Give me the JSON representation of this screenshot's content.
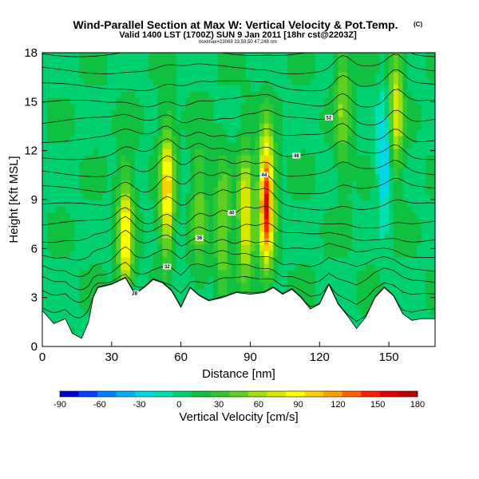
{
  "chart_data": {
    "type": "heatmap",
    "title": "Wind-Parallel Section at Max W: Vertical Velocity & Pot.Temp.",
    "copyright_mark": "(C)",
    "subtitle": "Valid 1400 LST (1700Z) SUN 9 Jan 2011 [18hr cst@2203Z]",
    "subsubtitle": "boxlmax=23069 33.59,50 47,248 nm",
    "xlabel": "Distance [nm]",
    "ylabel": "Height [Kft MSL]",
    "xlim": [
      0,
      170
    ],
    "ylim": [
      0,
      18
    ],
    "xticks": [
      0,
      30,
      60,
      90,
      120,
      150
    ],
    "yticks": [
      0,
      3,
      6,
      9,
      12,
      15,
      18
    ],
    "colorbar": {
      "label": "Vertical Velocity [cm/s]",
      "ticks": [
        -90,
        -60,
        -30,
        0,
        30,
        60,
        90,
        120,
        150,
        180
      ],
      "min": -90,
      "max": 180,
      "colors": [
        "#0000cc",
        "#0040ff",
        "#0080ff",
        "#00b0ff",
        "#00d8e8",
        "#00e0b0",
        "#00d070",
        "#10c040",
        "#30c830",
        "#60d020",
        "#a0e010",
        "#d8e800",
        "#ffff00",
        "#ffd000",
        "#ffa000",
        "#ff6000",
        "#ff2000",
        "#e00000",
        "#c00000"
      ]
    },
    "terrain": [
      [
        0,
        2.2
      ],
      [
        5,
        1.4
      ],
      [
        10,
        1.7
      ],
      [
        13,
        0.8
      ],
      [
        17,
        0.5
      ],
      [
        20,
        1.5
      ],
      [
        22,
        3.0
      ],
      [
        24,
        3.6
      ],
      [
        30,
        3.8
      ],
      [
        36,
        4.2
      ],
      [
        40,
        3.2
      ],
      [
        44,
        3.6
      ],
      [
        48,
        4.1
      ],
      [
        52,
        3.9
      ],
      [
        56,
        3.4
      ],
      [
        60,
        2.4
      ],
      [
        64,
        3.6
      ],
      [
        68,
        3.1
      ],
      [
        72,
        2.8
      ],
      [
        78,
        3.0
      ],
      [
        84,
        3.3
      ],
      [
        90,
        3.2
      ],
      [
        96,
        3.3
      ],
      [
        100,
        3.6
      ],
      [
        104,
        3.2
      ],
      [
        108,
        3.5
      ],
      [
        112,
        3.0
      ],
      [
        116,
        2.3
      ],
      [
        120,
        2.6
      ],
      [
        124,
        3.8
      ],
      [
        128,
        2.6
      ],
      [
        132,
        1.9
      ],
      [
        136,
        1.1
      ],
      [
        140,
        1.8
      ],
      [
        144,
        3.0
      ],
      [
        148,
        3.6
      ],
      [
        152,
        3.1
      ],
      [
        156,
        2.0
      ],
      [
        160,
        1.6
      ],
      [
        164,
        1.7
      ],
      [
        168,
        1.7
      ],
      [
        170,
        1.7
      ]
    ],
    "updrafts": [
      {
        "x": 36,
        "z": 6.8,
        "w": 85
      },
      {
        "x": 54,
        "z": 9.5,
        "w": 95
      },
      {
        "x": 68,
        "z": 8.5,
        "w": 40
      },
      {
        "x": 88,
        "z": 8.0,
        "w": 80
      },
      {
        "x": 97,
        "z": 9.0,
        "w": 150
      },
      {
        "x": 78,
        "z": 7.5,
        "w": 50
      },
      {
        "x": 153,
        "z": 14.5,
        "w": 70
      },
      {
        "x": 130,
        "z": 15.0,
        "w": 45
      }
    ],
    "downdrafts": [
      {
        "x": 148,
        "z": 11.5,
        "w": -45
      },
      {
        "x": 57,
        "z": 5.0,
        "w": -10
      }
    ],
    "theta_labels": [
      "28",
      "30",
      "32",
      "34",
      "36",
      "38",
      "40",
      "42",
      "44",
      "46",
      "48",
      "50",
      "52"
    ]
  }
}
